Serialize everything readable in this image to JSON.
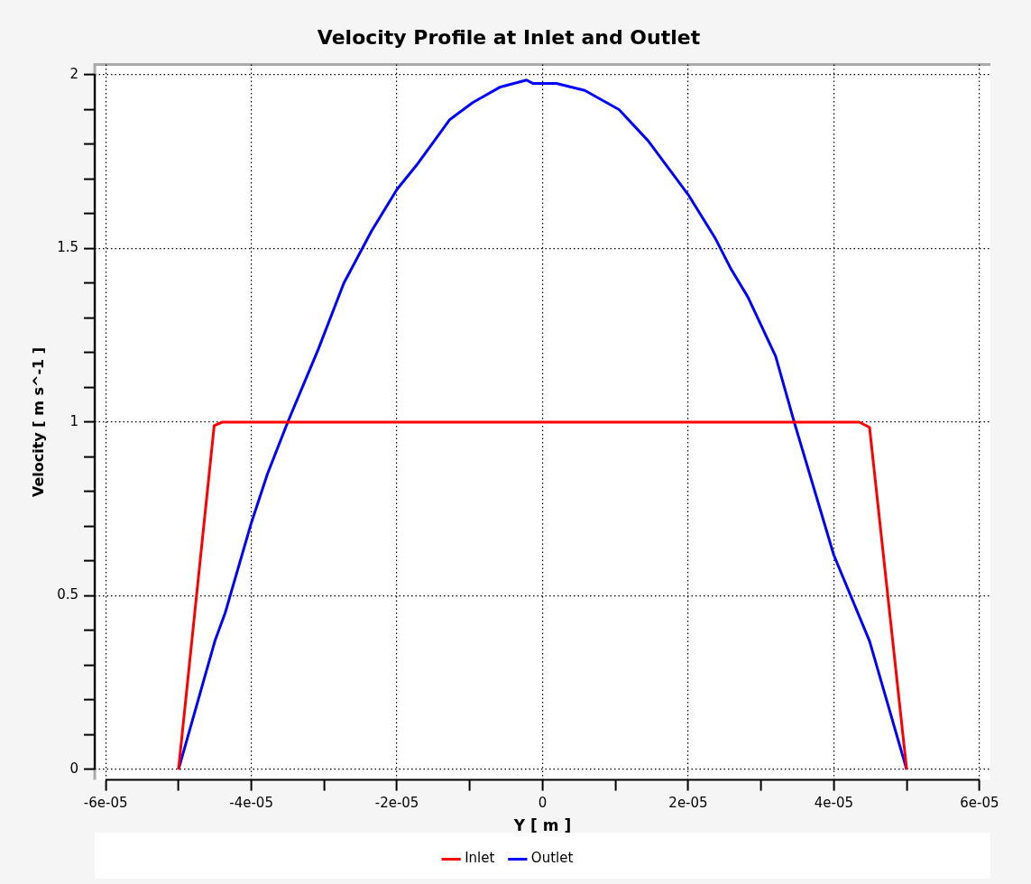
{
  "chart_data": {
    "type": "line",
    "title": "Velocity Profile at Inlet and Outlet",
    "xlabel": "Y [ m ]",
    "ylabel": "Velocity [ m s^-1 ]",
    "xlim": [
      -6.15e-05,
      6.15e-05
    ],
    "ylim": [
      -0.03,
      2.03
    ],
    "xticks": [
      {
        "value": -6e-05,
        "label": "-6e-05"
      },
      {
        "value": -5e-05,
        "label": null
      },
      {
        "value": -4e-05,
        "label": "-4e-05"
      },
      {
        "value": -3e-05,
        "label": null
      },
      {
        "value": -2e-05,
        "label": "-2e-05"
      },
      {
        "value": -1e-05,
        "label": null
      },
      0,
      {
        "value": 1e-05,
        "label": null
      },
      {
        "value": 2e-05,
        "label": "2e-05"
      },
      {
        "value": 3e-05,
        "label": null
      },
      {
        "value": 4e-05,
        "label": "4e-05"
      },
      {
        "value": 5e-05,
        "label": null
      },
      {
        "value": 6e-05,
        "label": "6e-05"
      }
    ],
    "yticks": [
      0,
      {
        "value": 0.1,
        "label": null
      },
      {
        "value": 0.2,
        "label": null
      },
      {
        "value": 0.3,
        "label": null
      },
      {
        "value": 0.4,
        "label": null
      },
      0.5,
      {
        "value": 0.6,
        "label": null
      },
      {
        "value": 0.7,
        "label": null
      },
      {
        "value": 0.8,
        "label": null
      },
      {
        "value": 0.9,
        "label": null
      },
      1,
      {
        "value": 1.1,
        "label": null
      },
      {
        "value": 1.2,
        "label": null
      },
      {
        "value": 1.3,
        "label": null
      },
      {
        "value": 1.4,
        "label": null
      },
      1.5,
      {
        "value": 1.6,
        "label": null
      },
      {
        "value": 1.7,
        "label": null
      },
      {
        "value": 1.8,
        "label": null
      },
      {
        "value": 1.9,
        "label": null
      },
      2
    ],
    "grid": true,
    "legend": "bottom",
    "marker": "none",
    "line_style": "solid",
    "series": [
      {
        "name": "Inlet",
        "color": "#ff0000",
        "x": [
          -5e-05,
          -4.51e-05,
          -4.4e-05,
          4.35e-05,
          4.49e-05,
          5e-05
        ],
        "values": [
          0,
          0.99,
          1,
          1,
          0.985,
          0
        ]
      },
      {
        "name": "Outlet",
        "color": "#0000ff",
        "x": [
          -5e-05,
          -4.5e-05,
          -4.36e-05,
          -4e-05,
          -3.78e-05,
          -3.5e-05,
          -3.08e-05,
          -2.73e-05,
          -2.35e-05,
          -2e-05,
          -1.73e-05,
          -1.28e-05,
          -9.6e-06,
          -5.8e-06,
          -2.2e-06,
          -1.3e-06,
          1.9e-06,
          5.8e-06,
          1.05e-05,
          1.45e-05,
          2e-05,
          2.37e-05,
          2.59e-05,
          2.82e-05,
          3.2e-05,
          3.46e-05,
          4e-05,
          4.49e-05,
          5e-05
        ],
        "values": [
          0,
          0.37,
          0.45,
          0.71,
          0.85,
          1.0,
          1.21,
          1.4,
          1.55,
          1.67,
          1.74,
          1.87,
          1.92,
          1.965,
          1.985,
          1.975,
          1.975,
          1.955,
          1.9,
          1.81,
          1.655,
          1.53,
          1.44,
          1.36,
          1.19,
          0.997,
          0.617,
          0.37,
          0
        ]
      }
    ]
  }
}
